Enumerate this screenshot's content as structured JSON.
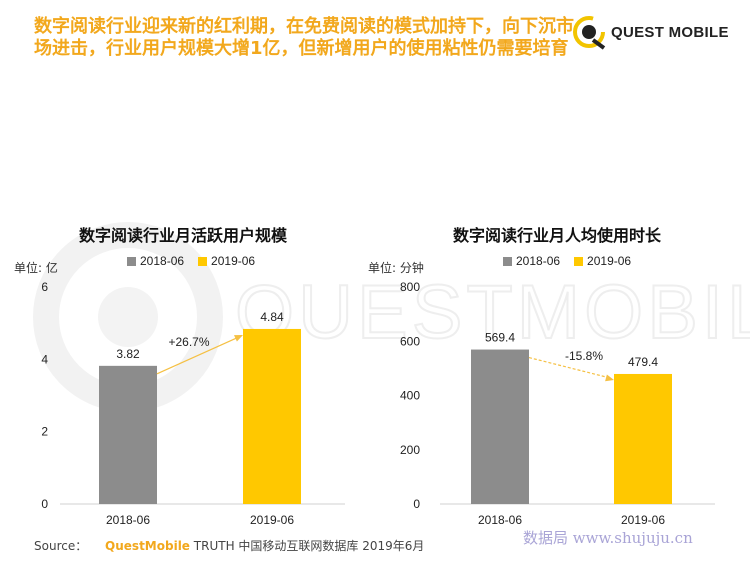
{
  "headline": "数字阅读行业迎来新的红利期，在免费阅读的模式加持下，向下沉市场进击，行业用户规模大增1亿，但新增用户的使用粘性仍需要培育",
  "logo": {
    "text": "QUEST MOBILE",
    "watermark": "QUESTMOBILE"
  },
  "colors": {
    "accent": "#f2a81d",
    "series_2018": "#8c8c8c",
    "series_2019": "#ffc800",
    "arrow": "#f5c043"
  },
  "charts": {
    "left": {
      "title": "数字阅读行业月活跃用户规模",
      "unit": "单位: 亿",
      "legend": [
        "2018-06",
        "2019-06"
      ],
      "change_label": "+26.7%"
    },
    "right": {
      "title": "数字阅读行业月人均使用时长",
      "unit": "单位: 分钟",
      "legend": [
        "2018-06",
        "2019-06"
      ],
      "change_label": "-15.8%"
    }
  },
  "chart_data": [
    {
      "type": "bar",
      "title": "数字阅读行业月活跃用户规模",
      "ylabel": "单位: 亿",
      "categories": [
        "2018-06",
        "2019-06"
      ],
      "values": [
        3.82,
        4.84
      ],
      "value_labels": [
        "3.82",
        "4.84"
      ],
      "ylim": [
        0,
        6
      ],
      "yticks": [
        "0",
        "2",
        "4",
        "6"
      ],
      "annotation": "+26.7%",
      "legend_position": "top",
      "grid": false
    },
    {
      "type": "bar",
      "title": "数字阅读行业月人均使用时长",
      "ylabel": "单位: 分钟",
      "categories": [
        "2018-06",
        "2019-06"
      ],
      "values": [
        569.4,
        479.4
      ],
      "value_labels": [
        "569.4",
        "479.4"
      ],
      "ylim": [
        0,
        800
      ],
      "yticks": [
        "0",
        "200",
        "400",
        "600",
        "800"
      ],
      "annotation": "-15.8%",
      "legend_position": "top",
      "grid": false
    }
  ],
  "source": {
    "label": "Source：",
    "brand": "QuestMobile",
    "text": "TRUTH 中国移动互联网数据库 2019年6月"
  },
  "site": "数据局 www.shujuju.cn"
}
